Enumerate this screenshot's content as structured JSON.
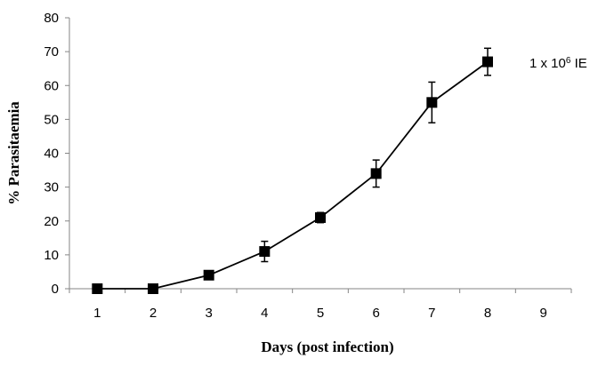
{
  "chart_data": {
    "type": "line",
    "title": "",
    "xlabel": "Days (post infection)",
    "ylabel": "% Parasitaemia",
    "x_ticks": [
      1,
      2,
      3,
      4,
      5,
      6,
      7,
      8,
      9
    ],
    "y_ticks": [
      0,
      10,
      20,
      30,
      40,
      50,
      60,
      70,
      80
    ],
    "xlim": [
      0.5,
      9.5
    ],
    "ylim": [
      0,
      80
    ],
    "grid": false,
    "series": [
      {
        "label_base": "1 x 10",
        "label_sup": "6",
        "label_unit": " IE",
        "color": "#000000",
        "marker": "square",
        "x": [
          1,
          2,
          3,
          4,
          5,
          6,
          7,
          8
        ],
        "y": [
          0,
          0,
          4,
          11,
          21,
          34,
          55,
          67
        ],
        "error": [
          0,
          0,
          0,
          3,
          1.5,
          4,
          6,
          4
        ]
      }
    ]
  }
}
